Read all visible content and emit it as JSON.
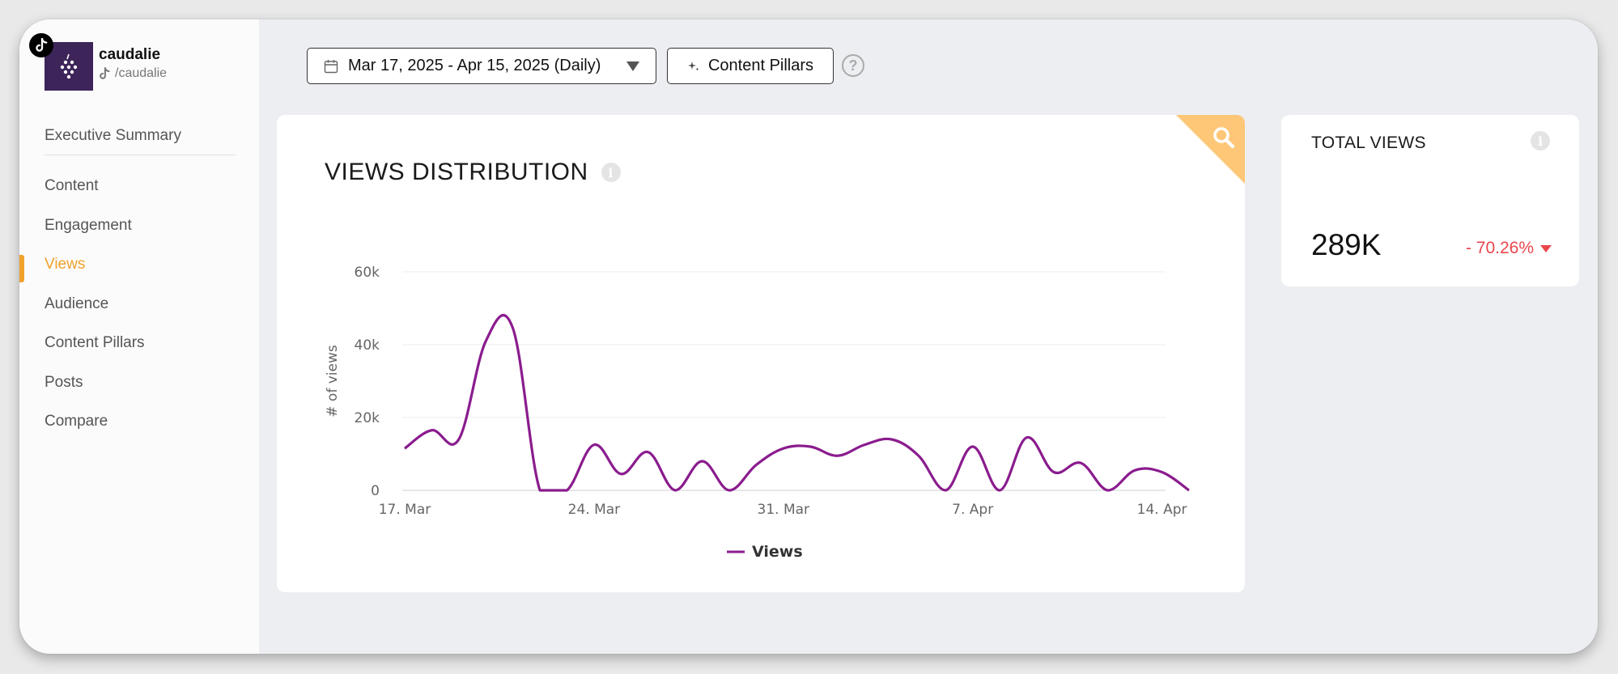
{
  "account": {
    "name": "caudalie",
    "handle": "/caudalie",
    "platform_icon": "tiktok-icon"
  },
  "sidebar": {
    "items": [
      {
        "label": "Executive Summary"
      },
      {
        "label": "Content"
      },
      {
        "label": "Engagement"
      },
      {
        "label": "Views",
        "active": true
      },
      {
        "label": "Audience"
      },
      {
        "label": "Content Pillars"
      },
      {
        "label": "Posts"
      },
      {
        "label": "Compare"
      }
    ]
  },
  "toolbar": {
    "date_range_label": "Mar 17, 2025 - Apr 15, 2025 (Daily)",
    "content_pillars_label": "Content Pillars",
    "help_label": "?"
  },
  "views_card": {
    "title": "VIEWS DISTRIBUTION",
    "info_label": "i"
  },
  "total_card": {
    "title": "TOTAL VIEWS",
    "value": "289K",
    "change": "- 70.26%",
    "change_color": "#e8464e",
    "info_label": "i"
  },
  "colors": {
    "accent": "#f0a22c",
    "series": "#8a1c8e",
    "avatar_bg": "#3d2459",
    "corner_flag": "#fdc777"
  },
  "chart_data": {
    "type": "line",
    "ylabel": "# of views",
    "xlabel": "",
    "ylim": [
      0,
      60000
    ],
    "y_ticks": [
      0,
      20000,
      40000,
      60000
    ],
    "y_tick_labels": [
      "0",
      "20k",
      "40k",
      "60k"
    ],
    "x_tick_labels": [
      "17. Mar",
      "24. Mar",
      "31. Mar",
      "7. Apr",
      "14. Apr"
    ],
    "x_tick_indices": [
      0,
      7,
      14,
      21,
      28
    ],
    "legend_position": "bottom-center",
    "grid": true,
    "series": [
      {
        "name": "Views",
        "x": [
          "2025-03-17",
          "2025-03-18",
          "2025-03-19",
          "2025-03-20",
          "2025-03-21",
          "2025-03-22",
          "2025-03-23",
          "2025-03-24",
          "2025-03-25",
          "2025-03-26",
          "2025-03-27",
          "2025-03-28",
          "2025-03-29",
          "2025-03-30",
          "2025-03-31",
          "2025-04-01",
          "2025-04-02",
          "2025-04-03",
          "2025-04-04",
          "2025-04-05",
          "2025-04-06",
          "2025-04-07",
          "2025-04-08",
          "2025-04-09",
          "2025-04-10",
          "2025-04-11",
          "2025-04-12",
          "2025-04-13",
          "2025-04-14",
          "2025-04-15"
        ],
        "values": [
          11500,
          16500,
          14000,
          41000,
          44500,
          0,
          0,
          12500,
          4500,
          10500,
          0,
          8000,
          0,
          7000,
          11500,
          12000,
          9500,
          12500,
          14000,
          9500,
          0,
          12000,
          0,
          14500,
          5000,
          7500,
          0,
          5500,
          5000,
          0
        ]
      }
    ]
  }
}
